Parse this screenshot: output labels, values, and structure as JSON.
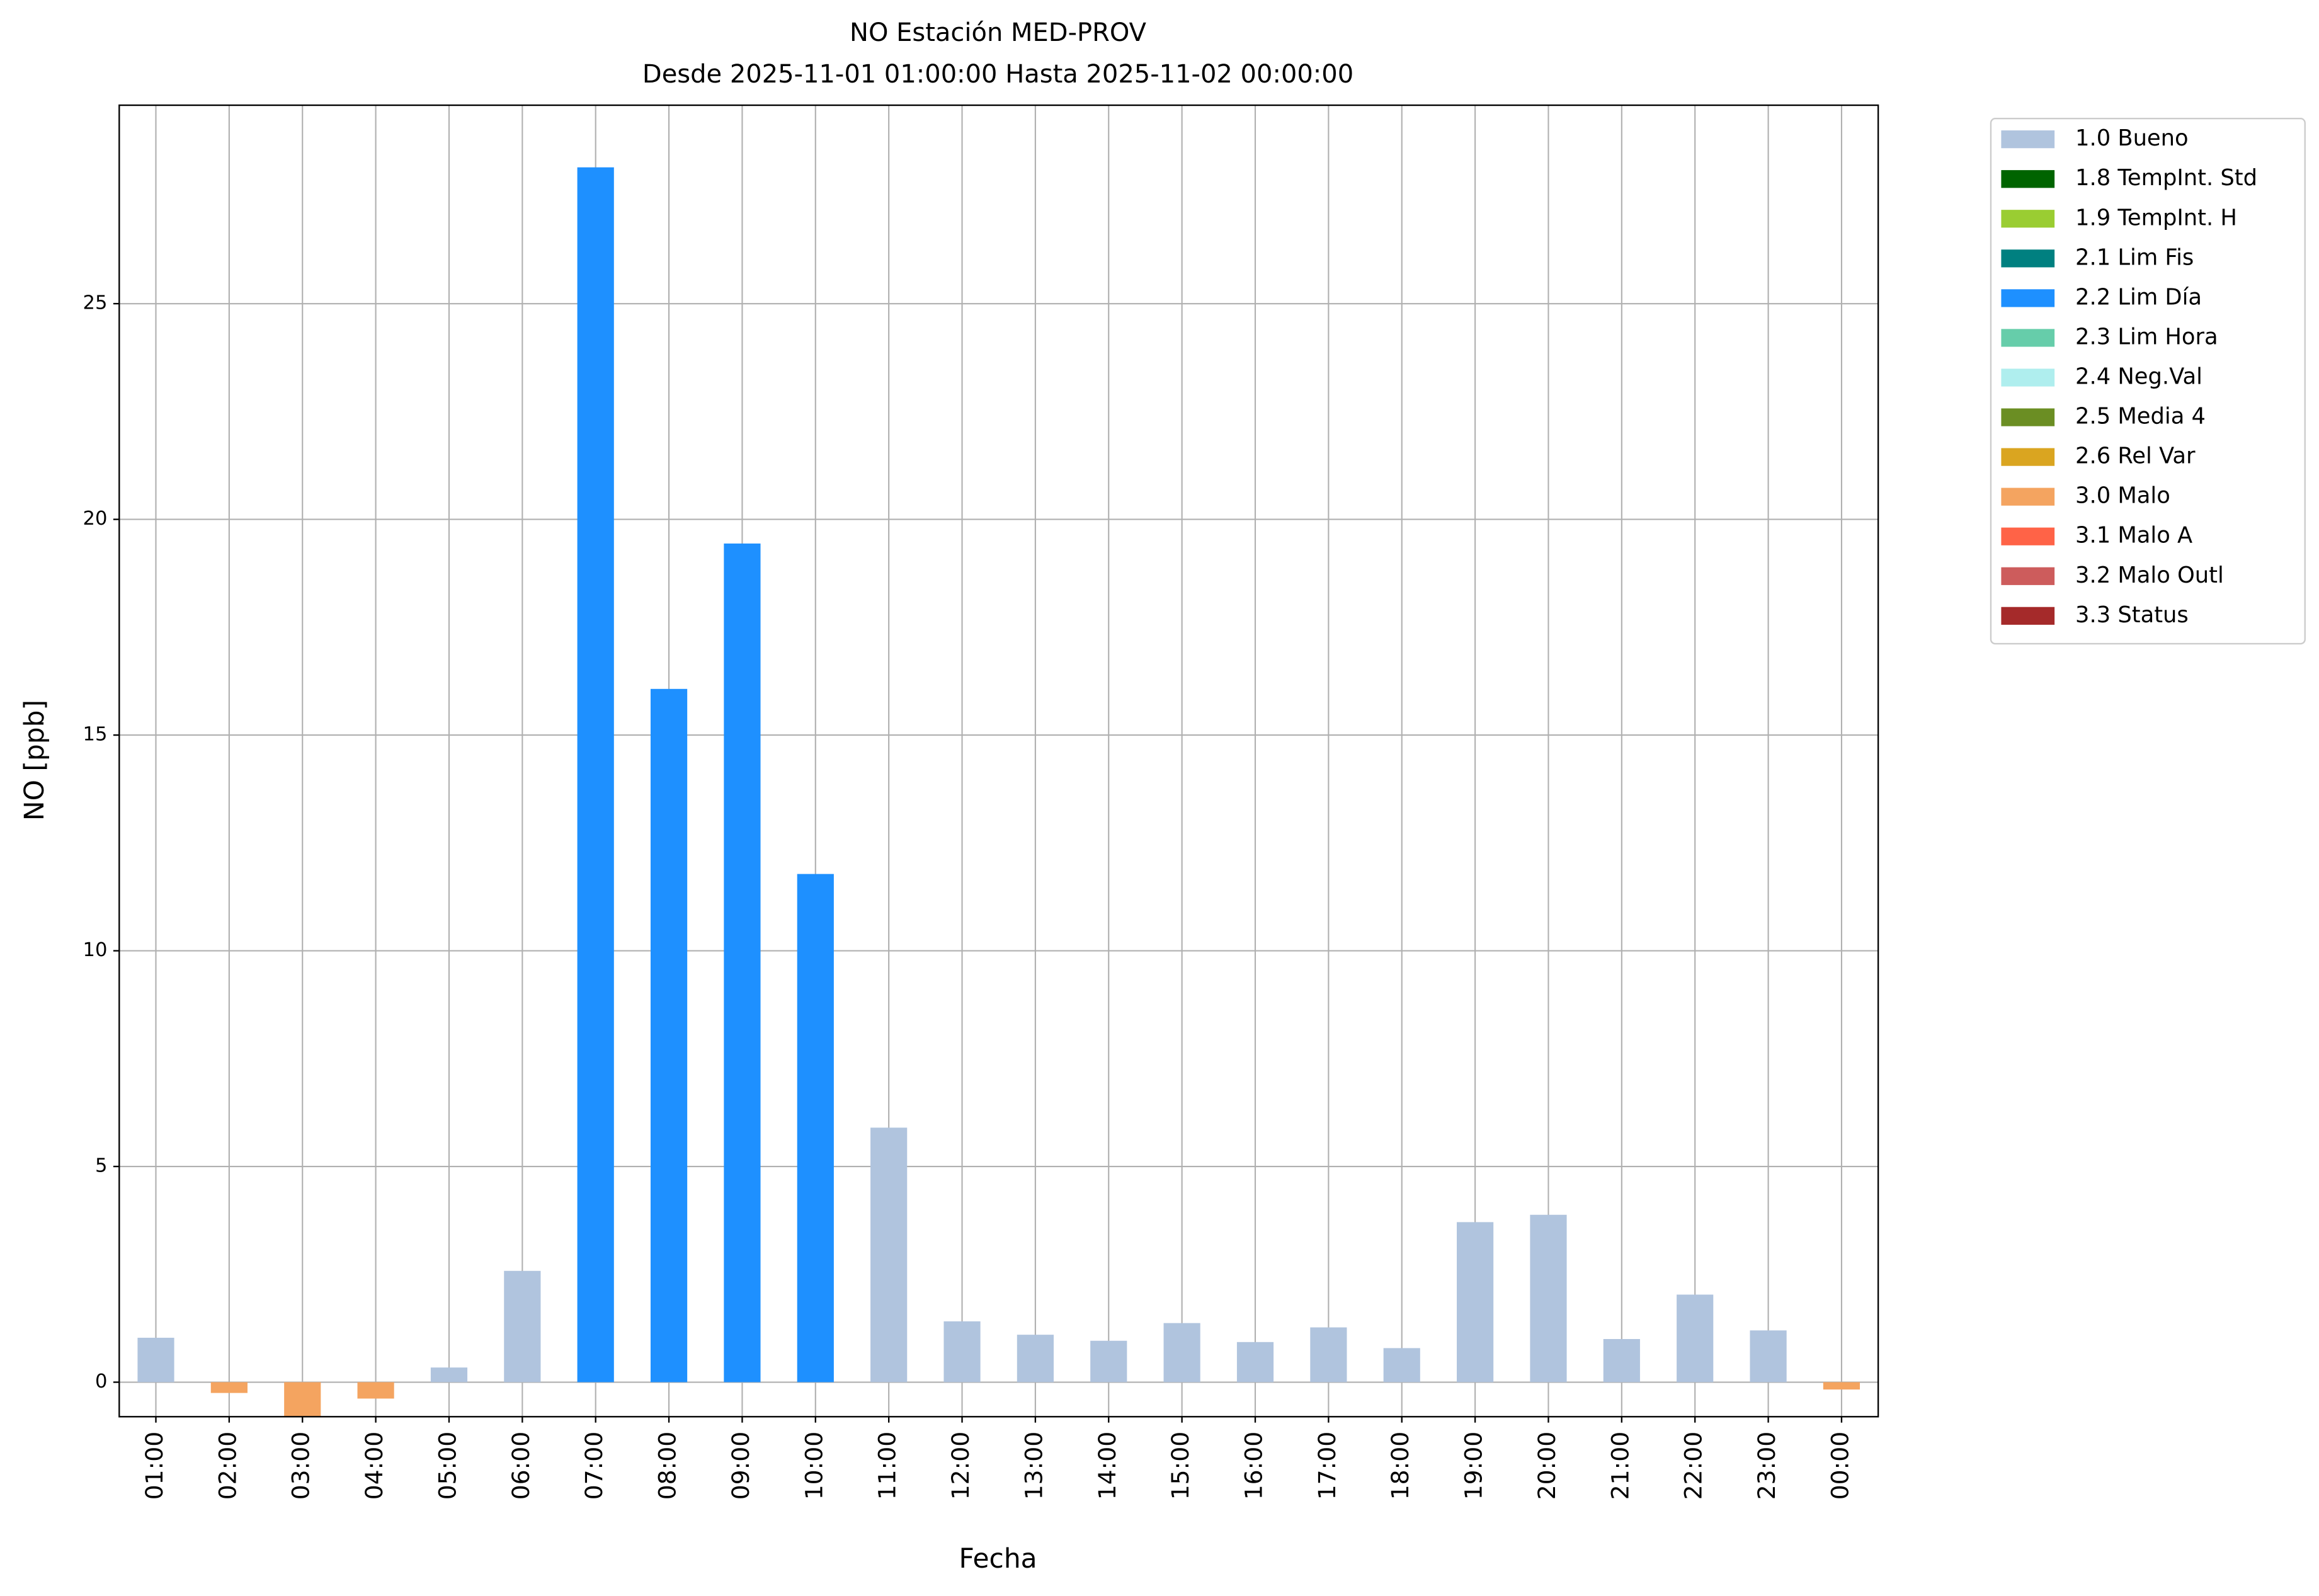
{
  "chart_data": {
    "type": "bar",
    "title": "NO Estación MED-PROV",
    "subtitle": "Desde 2025-11-01 01:00:00 Hasta 2025-11-02 00:00:00",
    "x_label": "Fecha",
    "y_label": "NO [ppb]",
    "categories": [
      "01:00",
      "02:00",
      "03:00",
      "04:00",
      "05:00",
      "06:00",
      "07:00",
      "08:00",
      "09:00",
      "10:00",
      "11:00",
      "12:00",
      "13:00",
      "14:00",
      "15:00",
      "16:00",
      "17:00",
      "18:00",
      "19:00",
      "20:00",
      "21:00",
      "22:00",
      "23:00",
      "00:00"
    ],
    "series": [
      {
        "name": "1.0 Bueno",
        "color": "#b0c4de",
        "values": [
          1.03,
          null,
          null,
          null,
          0.34,
          2.58,
          null,
          null,
          null,
          null,
          5.9,
          1.41,
          1.1,
          0.96,
          1.37,
          0.93,
          1.27,
          0.79,
          3.71,
          3.88,
          1.0,
          2.03,
          1.2,
          null
        ]
      },
      {
        "name": "1.8 TempInt. Std",
        "color": "#006400",
        "values": [
          null,
          null,
          null,
          null,
          null,
          null,
          null,
          null,
          null,
          null,
          null,
          null,
          null,
          null,
          null,
          null,
          null,
          null,
          null,
          null,
          null,
          null,
          null,
          null
        ]
      },
      {
        "name": "1.9 TempInt. H",
        "color": "#9acd32",
        "values": [
          null,
          null,
          null,
          null,
          null,
          null,
          null,
          null,
          null,
          null,
          null,
          null,
          null,
          null,
          null,
          null,
          null,
          null,
          null,
          null,
          null,
          null,
          null,
          null
        ]
      },
      {
        "name": "2.1 Lim Fis",
        "color": "#008080",
        "values": [
          null,
          null,
          null,
          null,
          null,
          null,
          null,
          null,
          null,
          null,
          null,
          null,
          null,
          null,
          null,
          null,
          null,
          null,
          null,
          null,
          null,
          null,
          null,
          null
        ]
      },
      {
        "name": "2.2 Lim Día",
        "color": "#1e90ff",
        "values": [
          null,
          null,
          null,
          null,
          null,
          null,
          28.16,
          16.07,
          19.44,
          11.78,
          null,
          null,
          null,
          null,
          null,
          null,
          null,
          null,
          null,
          null,
          null,
          null,
          null,
          null
        ]
      },
      {
        "name": "2.3 Lim Hora",
        "color": "#66cdaa",
        "values": [
          null,
          null,
          null,
          null,
          null,
          null,
          null,
          null,
          null,
          null,
          null,
          null,
          null,
          null,
          null,
          null,
          null,
          null,
          null,
          null,
          null,
          null,
          null,
          null
        ]
      },
      {
        "name": "2.4 Neg.Val",
        "color": "#afeeee",
        "values": [
          null,
          null,
          null,
          null,
          null,
          null,
          null,
          null,
          null,
          null,
          null,
          null,
          null,
          null,
          null,
          null,
          null,
          null,
          null,
          null,
          null,
          null,
          null,
          null
        ]
      },
      {
        "name": "2.5 Media 4",
        "color": "#6b8e23",
        "values": [
          null,
          null,
          null,
          null,
          null,
          null,
          null,
          null,
          null,
          null,
          null,
          null,
          null,
          null,
          null,
          null,
          null,
          null,
          null,
          null,
          null,
          null,
          null,
          null
        ]
      },
      {
        "name": "2.6 Rel Var",
        "color": "#daa520",
        "values": [
          null,
          null,
          null,
          null,
          null,
          null,
          null,
          null,
          null,
          null,
          null,
          null,
          null,
          null,
          null,
          null,
          null,
          null,
          null,
          null,
          null,
          null,
          null,
          null
        ]
      },
      {
        "name": "3.0 Malo",
        "color": "#f4a460",
        "values": [
          null,
          -0.25,
          -0.8,
          -0.38,
          null,
          null,
          null,
          null,
          null,
          null,
          null,
          null,
          null,
          null,
          null,
          null,
          null,
          null,
          null,
          null,
          null,
          null,
          null,
          -0.17
        ]
      },
      {
        "name": "3.1 Malo A",
        "color": "#ff6347",
        "values": [
          null,
          null,
          null,
          null,
          null,
          null,
          null,
          null,
          null,
          null,
          null,
          null,
          null,
          null,
          null,
          null,
          null,
          null,
          null,
          null,
          null,
          null,
          null,
          null
        ]
      },
      {
        "name": "3.2 Malo Outl",
        "color": "#cd5c5c",
        "values": [
          null,
          null,
          null,
          null,
          null,
          null,
          null,
          null,
          null,
          null,
          null,
          null,
          null,
          null,
          null,
          null,
          null,
          null,
          null,
          null,
          null,
          null,
          null,
          null
        ]
      },
      {
        "name": "3.3 Status",
        "color": "#a52a2a",
        "values": [
          null,
          null,
          null,
          null,
          null,
          null,
          null,
          null,
          null,
          null,
          null,
          null,
          null,
          null,
          null,
          null,
          null,
          null,
          null,
          null,
          null,
          null,
          null,
          null
        ]
      }
    ],
    "ylim": [
      -0.8,
      29.6
    ],
    "yticks": [
      0,
      5,
      10,
      15,
      20,
      25
    ],
    "grid": true,
    "legend": "outside-right-top"
  }
}
